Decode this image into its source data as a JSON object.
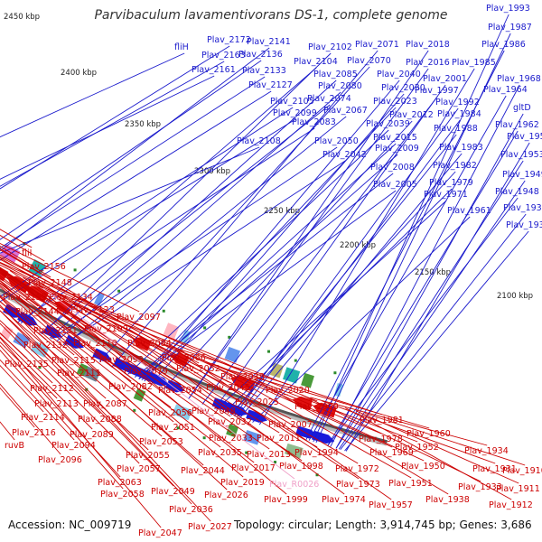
{
  "title": "Parvibaculum lavamentivorans DS-1, complete genome",
  "footer": {
    "accession": "Accession: NC_009719",
    "topology": "Topology: circular; Length: 3,914,745 bp; Genes: 3,686"
  },
  "colors": {
    "forward_strand": "#1a1adb",
    "reverse_strand": "#e01010",
    "forward_label": "#1a1acc",
    "reverse_label": "#cc0000",
    "rna_label": "#f0a0c8",
    "backbone": "#888888"
  },
  "ticks": [
    "2450 kbp",
    "2400 kbp",
    "2350 kbp",
    "2300 kbp",
    "2250 kbp",
    "2200 kbp",
    "2150 kbp",
    "2100 kbp"
  ],
  "forward_labels": [
    "Plav_1993",
    "Plav_1987",
    "Plav_1986",
    "Plav_1985",
    "Plav_1968",
    "Plav_1964",
    "gltD",
    "Plav_1962",
    "Plav_1954",
    "Plav_1953",
    "Plav_1949",
    "Plav_1948",
    "Plav_1936",
    "Plav_1935",
    "Plav_2018",
    "Plav_2016",
    "Plav_2001",
    "Plav_1997",
    "Plav_1992",
    "Plav_1984",
    "Plav_1988",
    "Plav_1983",
    "Plav_1982",
    "Plav_1979",
    "Plav_1971",
    "Plav_1961",
    "Plav_2071",
    "Plav_2070",
    "Plav_2040",
    "Plav_2030",
    "Plav_2023",
    "Plav_2012",
    "Plav_2039",
    "Plav_2015",
    "Plav_2009",
    "Plav_2008",
    "Plav_2005",
    "Plav_2102",
    "Plav_2104",
    "Plav_2085",
    "Plav_2080",
    "Plav_2074",
    "Plav_2067",
    "Plav_2083",
    "Plav_2050",
    "Plav_2042",
    "Plav_2141",
    "Plav_2136",
    "Plav_2133",
    "Plav_2127",
    "Plav_2105",
    "Plav_2099",
    "Plav_2108",
    "fliH",
    "Plav_2172",
    "Plav_2163",
    "Plav_2161"
  ],
  "reverse_labels": [
    "fliI",
    "Plav_2156",
    "Plav_2148",
    "Plav_2155",
    "Plav_2134",
    "Plav_2144",
    "Plav_2123",
    "Plav_2097",
    "Plav_2109",
    "Plav_2131",
    "Plav_2132",
    "Plav_2110",
    "Plav_2084",
    "Plav_2135",
    "Plav_2115",
    "Plav_2093",
    "Plav_2111",
    "Plav_2079",
    "Plav_2066",
    "Plav_2112",
    "Plav_2082",
    "Plav_2052",
    "Plav_2038",
    "Plav_2113",
    "Plav_2087",
    "Plav_2054",
    "Plav_2045",
    "Plav_2114",
    "Plav_2088",
    "Plav_2056",
    "Plav_2048",
    "Plav_2025",
    "Plav_2020",
    "Plav_2116",
    "Plav_2089",
    "Plav_2051",
    "Plav_2032",
    "Plav_2007",
    "Plav_2000",
    "ruvB",
    "Plav_2094",
    "Plav_2053",
    "Plav_2033",
    "Plav_2011",
    "Plav_1981",
    "Plav_2096",
    "Plav_2055",
    "Plav_2035",
    "Plav_2013",
    "Plav_1994",
    "Plav_1978",
    "Plav_1960",
    "Plav_2057",
    "Plav_2017",
    "Plav_1998",
    "Plav_1969",
    "Plav_1952",
    "Plav_1934",
    "Plav_2063",
    "Plav_2044",
    "Plav_2019",
    "Plav_1972",
    "Plav_1950",
    "Plav_1931",
    "Plav_1910",
    "Plav_2058",
    "Plav_2049",
    "Plav_2026",
    "Plav_1973",
    "Plav_1951",
    "Plav_1933",
    "Plav_1911",
    "Plav_1999",
    "Plav_1974",
    "Plav_1957",
    "Plav_1938",
    "Plav_1912",
    "Plav_2036",
    "Plav_2027",
    "Plav_2047"
  ],
  "rna_labels": [
    "Plav_R0026"
  ]
}
